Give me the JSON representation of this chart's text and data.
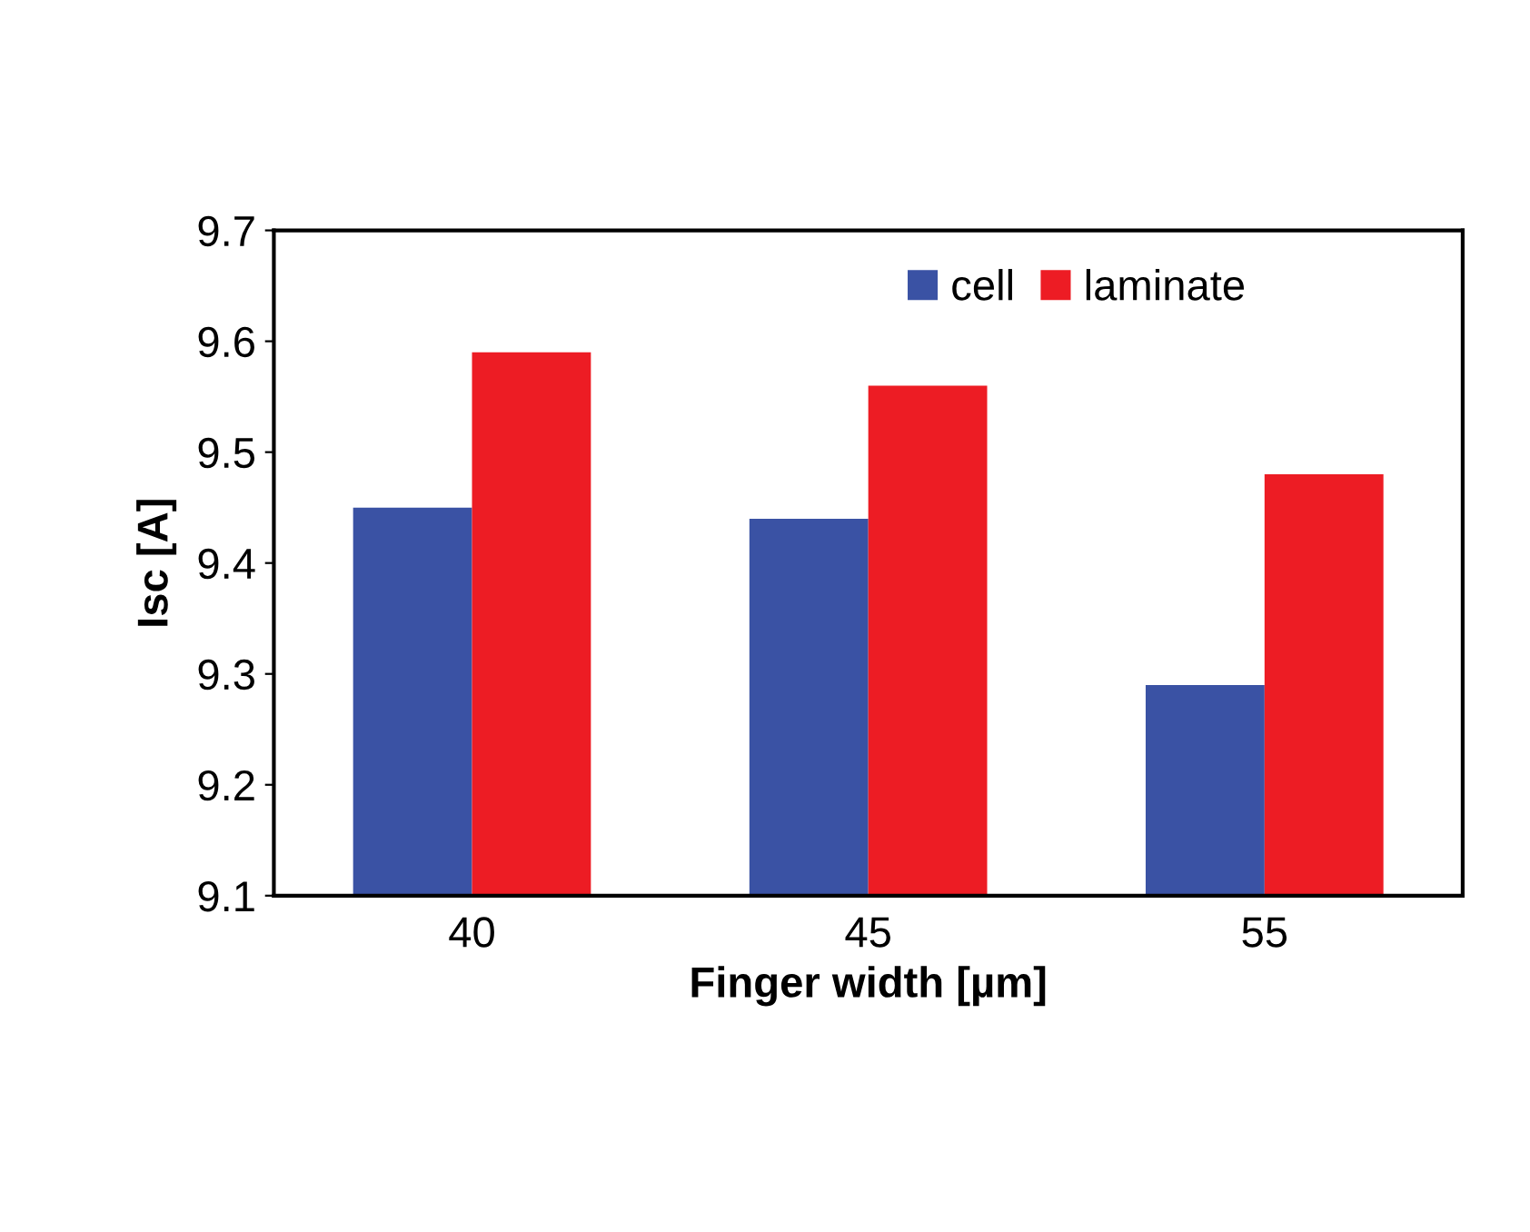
{
  "chart_data": {
    "type": "bar",
    "xlabel": "Finger width [µm]",
    "ylabel": "Isc [A]",
    "categories": [
      "40",
      "45",
      "55"
    ],
    "series": [
      {
        "name": "cell",
        "color": "#3a52a4",
        "values": [
          9.45,
          9.44,
          9.29
        ]
      },
      {
        "name": "laminate",
        "color": "#ed1c24",
        "values": [
          9.59,
          9.56,
          9.48
        ]
      }
    ],
    "ylim": [
      9.1,
      9.7
    ],
    "yticks": [
      9.1,
      9.2,
      9.3,
      9.4,
      9.5,
      9.6,
      9.7
    ],
    "grid": false,
    "legend": "top right"
  }
}
